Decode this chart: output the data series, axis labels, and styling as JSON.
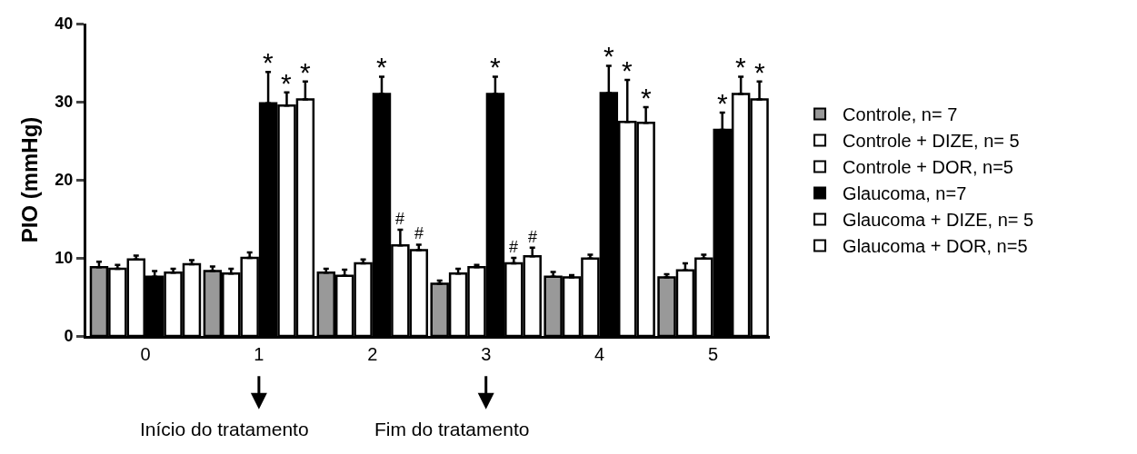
{
  "chart_data": {
    "type": "bar",
    "ylabel": "PIO (mmHg)",
    "categories": [
      "0",
      "1",
      "2",
      "3",
      "4",
      "5"
    ],
    "ylim": [
      0,
      40
    ],
    "yticks": [
      0,
      10,
      20,
      30,
      40
    ],
    "grid": false,
    "legend": "right",
    "series": [
      {
        "name": "Controle, n= 7",
        "color": "#999999",
        "values": [
          8.8,
          8.3,
          8.1,
          6.7,
          7.6,
          7.5
        ],
        "errors": [
          [
            8.8,
            9.5
          ],
          [
            8.3,
            8.9
          ],
          [
            8.1,
            8.6
          ],
          [
            6.7,
            7.1
          ],
          [
            7.6,
            8.2
          ],
          [
            7.5,
            7.9
          ]
        ]
      },
      {
        "name": "Controle + DIZE, n= 5",
        "color": "#ffffff",
        "values": [
          8.6,
          8.0,
          7.7,
          8.0,
          7.5,
          8.4
        ],
        "errors": [
          [
            8.6,
            9.1
          ],
          [
            8.0,
            8.6
          ],
          [
            7.7,
            8.5
          ],
          [
            8.0,
            8.6
          ],
          [
            7.5,
            7.8
          ],
          [
            8.4,
            9.3
          ]
        ]
      },
      {
        "name": "Controle + DOR, n=5",
        "color": "#ffffff",
        "values": [
          9.8,
          10.0,
          9.3,
          8.8,
          9.9,
          9.9
        ],
        "errors": [
          [
            9.8,
            10.3
          ],
          [
            10.0,
            10.7
          ],
          [
            9.3,
            9.8
          ],
          [
            8.8,
            9.1
          ],
          [
            9.9,
            10.4
          ],
          [
            9.9,
            10.4
          ]
        ]
      },
      {
        "name": "Glaucoma, n=7",
        "color": "#000000",
        "values": [
          7.6,
          29.8,
          31.0,
          31.0,
          31.1,
          26.4
        ],
        "errors": [
          [
            7.6,
            8.3
          ],
          [
            29.8,
            33.8
          ],
          [
            31.0,
            33.2
          ],
          [
            31.0,
            33.2
          ],
          [
            31.1,
            34.6
          ],
          [
            26.4,
            28.6
          ]
        ],
        "value_labels": [
          null,
          "*",
          "*",
          "*",
          "*",
          "*"
        ]
      },
      {
        "name": "Glaucoma + DIZE, n= 5",
        "color": "#ffffff",
        "values": [
          8.1,
          29.5,
          11.6,
          9.3,
          27.4,
          31.0
        ],
        "errors": [
          [
            8.1,
            8.6
          ],
          [
            29.5,
            31.2
          ],
          [
            11.6,
            13.6
          ],
          [
            9.3,
            10.0
          ],
          [
            27.4,
            32.8
          ],
          [
            31.0,
            33.2
          ]
        ],
        "value_labels": [
          null,
          "*",
          "#",
          "#",
          "*",
          "*"
        ]
      },
      {
        "name": "Glaucoma + DOR, n=5",
        "color": "#ffffff",
        "values": [
          9.2,
          30.3,
          11.0,
          10.2,
          27.3,
          30.3
        ],
        "errors": [
          [
            9.2,
            9.7
          ],
          [
            30.3,
            32.6
          ],
          [
            11.0,
            11.7
          ],
          [
            10.2,
            11.3
          ],
          [
            27.3,
            29.3
          ],
          [
            30.3,
            32.6
          ]
        ],
        "value_labels": [
          null,
          "*",
          "#",
          "#",
          "*",
          "*"
        ]
      }
    ],
    "annotations": [
      "Início do tratamento",
      "Fim do tratamento"
    ]
  }
}
